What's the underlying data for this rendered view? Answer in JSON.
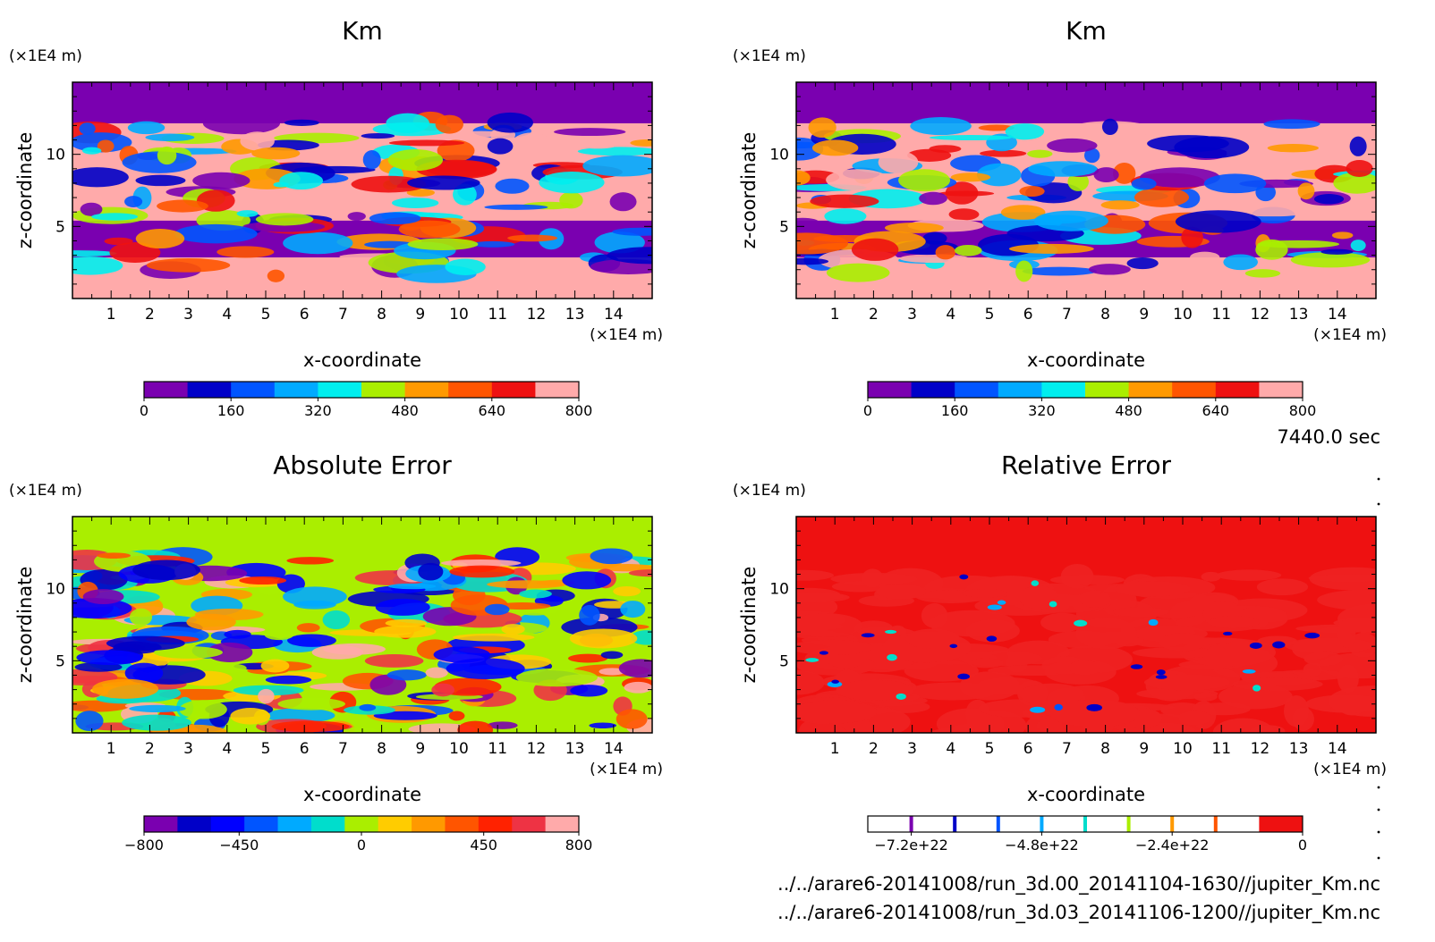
{
  "time_label": "7440.0 sec",
  "footer": {
    "file1": "../../arare6-20141008/run_3d.00_20141104-1630//jupiter_Km.nc",
    "file2": "../../arare6-20141008/run_3d.03_20141106-1200//jupiter_Km.nc"
  },
  "chart_data": [
    {
      "type": "heatmap",
      "title": "Km",
      "xlabel": "x-coordinate",
      "ylabel": "z-coordinate",
      "x_unit": "(×1E4 m)",
      "y_unit": "(×1E4 m)",
      "xlim": [
        0,
        15
      ],
      "ylim": [
        0,
        15
      ],
      "x_ticks": [
        "1",
        "2",
        "3",
        "4",
        "5",
        "6",
        "7",
        "8",
        "9",
        "10",
        "11",
        "12",
        "13",
        "14"
      ],
      "y_ticks": [
        "5",
        "10"
      ],
      "colorbar": {
        "min": 0,
        "max": 800,
        "labels": [
          "0",
          "160",
          "320",
          "480",
          "640",
          "800"
        ],
        "colors": [
          "#7a00b0",
          "#0000c8",
          "#0055ff",
          "#00aaff",
          "#00eeee",
          "#aaee00",
          "#ff9900",
          "#ff5500",
          "#ee1111",
          "#ffaaaa"
        ]
      }
    },
    {
      "type": "heatmap",
      "title": "Km",
      "xlabel": "x-coordinate",
      "ylabel": "z-coordinate",
      "x_unit": "(×1E4 m)",
      "y_unit": "(×1E4 m)",
      "xlim": [
        0,
        15
      ],
      "ylim": [
        0,
        15
      ],
      "x_ticks": [
        "1",
        "2",
        "3",
        "4",
        "5",
        "6",
        "7",
        "8",
        "9",
        "10",
        "11",
        "12",
        "13",
        "14"
      ],
      "y_ticks": [
        "5",
        "10"
      ],
      "colorbar": {
        "min": 0,
        "max": 800,
        "labels": [
          "0",
          "160",
          "320",
          "480",
          "640",
          "800"
        ],
        "colors": [
          "#7a00b0",
          "#0000c8",
          "#0055ff",
          "#00aaff",
          "#00eeee",
          "#aaee00",
          "#ff9900",
          "#ff5500",
          "#ee1111",
          "#ffaaaa"
        ]
      }
    },
    {
      "type": "heatmap",
      "title": "Absolute Error",
      "xlabel": "x-coordinate",
      "ylabel": "z-coordinate",
      "x_unit": "(×1E4 m)",
      "y_unit": "(×1E4 m)",
      "xlim": [
        0,
        15
      ],
      "ylim": [
        0,
        15
      ],
      "x_ticks": [
        "1",
        "2",
        "3",
        "4",
        "5",
        "6",
        "7",
        "8",
        "9",
        "10",
        "11",
        "12",
        "13",
        "14"
      ],
      "y_ticks": [
        "5",
        "10"
      ],
      "colorbar": {
        "min": -800,
        "max": 800,
        "labels": [
          "-800",
          "-450",
          "0",
          "450",
          "800"
        ],
        "colors": [
          "#7a00b0",
          "#0000c8",
          "#0000ff",
          "#0055ff",
          "#00aaff",
          "#00ddcc",
          "#aaee00",
          "#ffcc00",
          "#ff9900",
          "#ff5500",
          "#ff2200",
          "#ee3344",
          "#ffaaaa"
        ]
      }
    },
    {
      "type": "heatmap",
      "title": "Relative Error",
      "xlabel": "x-coordinate",
      "ylabel": "z-coordinate",
      "x_unit": "(×1E4 m)",
      "y_unit": "(×1E4 m)",
      "xlim": [
        0,
        15
      ],
      "ylim": [
        0,
        15
      ],
      "x_ticks": [
        "1",
        "2",
        "3",
        "4",
        "5",
        "6",
        "7",
        "8",
        "9",
        "10",
        "11",
        "12",
        "13",
        "14"
      ],
      "y_ticks": [
        "5",
        "10"
      ],
      "colorbar": {
        "min": -8e+22,
        "max": 0,
        "labels": [
          "-7.2e+22",
          "-4.8e+22",
          "-2.4e+22",
          "0"
        ],
        "colors": [
          "#ffffff",
          "#7a00b0",
          "#0000c8",
          "#0055ff",
          "#00aaff",
          "#00ddcc",
          "#aaee00",
          "#ff9900",
          "#ff5500",
          "#ee1111"
        ]
      }
    }
  ]
}
